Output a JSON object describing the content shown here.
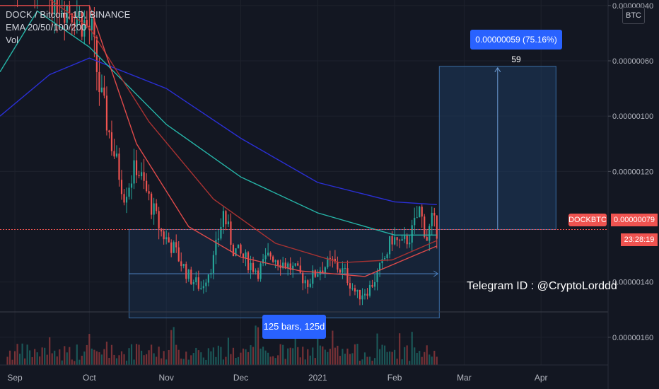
{
  "legend": {
    "symbol_line": "DOCK / Bitcoin, 1D, BINANCE",
    "ema_line": "EMA 20/50/100/200",
    "vol_line": "Vol"
  },
  "currency_badge": "BTC",
  "price_axis_labels": [
    "0.00000160",
    "0.00000140",
    "0.00000120",
    "0.00000100",
    "0.00000060",
    "0.00000040"
  ],
  "time_axis_labels": [
    "Sep",
    "Oct",
    "Nov",
    "Dec",
    "2021",
    "Feb",
    "Mar",
    "Apr"
  ],
  "last_price": {
    "symbol": "DOCKBTC",
    "value": "0.00000079",
    "countdown": "23:28:19"
  },
  "annotations": {
    "range_label": "125 bars, 125d",
    "target_label": "0.00000059 (75.16%) 59",
    "telegram": "Telegram ID : @CryptoLorddd"
  },
  "colors": {
    "background": "#131722",
    "up_candle": "#26a69a",
    "down_candle": "#ef5350",
    "ema20": "#e04a4a",
    "ema50": "#a83232",
    "ema100": "#26b5a8",
    "ema200": "#2a2fd6",
    "range_box": "#1e3a5f",
    "label_blue": "#2962ff",
    "price_tag": "#ef5350"
  },
  "chart_data": {
    "type": "candlestick",
    "pair": "DOCK / Bitcoin",
    "timeframe": "1D",
    "exchange": "BINANCE",
    "indicators": [
      "EMA 20",
      "EMA 50",
      "EMA 100",
      "EMA 200",
      "Vol"
    ],
    "ylim": [
      3e-07,
      1.62e-06
    ],
    "yticks": [
      4e-07,
      6e-07,
      1e-06,
      1.2e-06,
      1.4e-06,
      1.6e-06
    ],
    "x_range": [
      "2020-08-26",
      "2021-04-28"
    ],
    "xticks": [
      {
        "label": "Sep",
        "date": "2020-09-01"
      },
      {
        "label": "Oct",
        "date": "2020-10-01"
      },
      {
        "label": "Nov",
        "date": "2020-11-01"
      },
      {
        "label": "Dec",
        "date": "2020-12-01"
      },
      {
        "label": "2021",
        "date": "2021-01-01"
      },
      {
        "label": "Feb",
        "date": "2021-02-01"
      },
      {
        "label": "Mar",
        "date": "2021-03-01"
      },
      {
        "label": "Apr",
        "date": "2021-04-01"
      }
    ],
    "price_path": [
      [
        "2020-08-28",
        1.75e-06
      ],
      [
        "2020-09-10",
        1.68e-06
      ],
      [
        "2020-09-25",
        1.58e-06
      ],
      [
        "2020-10-02",
        1.5e-06
      ],
      [
        "2020-10-05",
        1.3e-06
      ],
      [
        "2020-10-10",
        1.1e-06
      ],
      [
        "2020-10-15",
        9.2e-07
      ],
      [
        "2020-10-20",
        1.02e-06
      ],
      [
        "2020-10-25",
        9e-07
      ],
      [
        "2020-10-30",
        7.8e-07
      ],
      [
        "2020-11-04",
        7.2e-07
      ],
      [
        "2020-11-10",
        6.2e-07
      ],
      [
        "2020-11-15",
        5.8e-07
      ],
      [
        "2020-11-20",
        6.8e-07
      ],
      [
        "2020-11-24",
        8.5e-07
      ],
      [
        "2020-11-28",
        7.2e-07
      ],
      [
        "2020-12-03",
        6.8e-07
      ],
      [
        "2020-12-08",
        6.4e-07
      ],
      [
        "2020-12-13",
        7e-07
      ],
      [
        "2020-12-18",
        6.7e-07
      ],
      [
        "2020-12-23",
        6.4e-07
      ],
      [
        "2020-12-28",
        6e-07
      ],
      [
        "2021-01-02",
        6.5e-07
      ],
      [
        "2021-01-07",
        6.7e-07
      ],
      [
        "2021-01-12",
        6.3e-07
      ],
      [
        "2021-01-17",
        5.5e-07
      ],
      [
        "2021-01-22",
        5.8e-07
      ],
      [
        "2021-01-27",
        6.6e-07
      ],
      [
        "2021-01-31",
        7.6e-07
      ],
      [
        "2021-02-04",
        7.3e-07
      ],
      [
        "2021-02-08",
        7.8e-07
      ],
      [
        "2021-02-11",
        8.6e-07
      ],
      [
        "2021-02-14",
        7.6e-07
      ],
      [
        "2021-02-16",
        8.2e-07
      ],
      [
        "2021-02-18",
        7.9e-07
      ]
    ],
    "ema20": [
      [
        "2020-08-26",
        1.6e-06
      ],
      [
        "2020-10-01",
        1.6e-06
      ],
      [
        "2020-10-20",
        1.1e-06
      ],
      [
        "2020-11-10",
        8e-07
      ],
      [
        "2020-12-01",
        6.9e-07
      ],
      [
        "2020-12-25",
        6.4e-07
      ],
      [
        "2021-01-20",
        6.2e-07
      ],
      [
        "2021-02-10",
        7e-07
      ],
      [
        "2021-02-18",
        7.3e-07
      ]
    ],
    "ema50": [
      [
        "2020-08-26",
        1.75e-06
      ],
      [
        "2020-10-01",
        1.52e-06
      ],
      [
        "2020-10-25",
        1.18e-06
      ],
      [
        "2020-11-20",
        9e-07
      ],
      [
        "2020-12-15",
        7.4e-07
      ],
      [
        "2021-01-10",
        6.7e-07
      ],
      [
        "2021-01-31",
        6.8e-07
      ],
      [
        "2021-02-18",
        7.5e-07
      ]
    ],
    "ema100": [
      [
        "2020-08-26",
        1.36e-06
      ],
      [
        "2020-09-10",
        1.58e-06
      ],
      [
        "2020-10-01",
        1.45e-06
      ],
      [
        "2020-11-01",
        1.17e-06
      ],
      [
        "2020-12-01",
        9.8e-07
      ],
      [
        "2021-01-01",
        8.5e-07
      ],
      [
        "2021-02-01",
        7.7e-07
      ],
      [
        "2021-02-18",
        7.7e-07
      ]
    ],
    "ema200": [
      [
        "2020-08-26",
        1.2e-06
      ],
      [
        "2020-09-15",
        1.35e-06
      ],
      [
        "2020-10-01",
        1.41e-06
      ],
      [
        "2020-11-01",
        1.3e-06
      ],
      [
        "2020-12-01",
        1.12e-06
      ],
      [
        "2021-01-01",
        9.6e-07
      ],
      [
        "2021-02-01",
        8.9e-07
      ],
      [
        "2021-02-18",
        8.8e-07
      ]
    ],
    "range_box": {
      "start": "2020-10-17",
      "end": "2021-02-19",
      "top": 7.9e-07,
      "bottom": 4.7e-07,
      "mid": 6.3e-07,
      "bars": 125
    },
    "target_projection": {
      "start": "2021-02-19",
      "end": "2021-04-07",
      "from": 7.9e-07,
      "to": 1.38e-06,
      "change": 5.9e-07,
      "percent": 75.16
    },
    "last_price": 7.9e-07
  }
}
